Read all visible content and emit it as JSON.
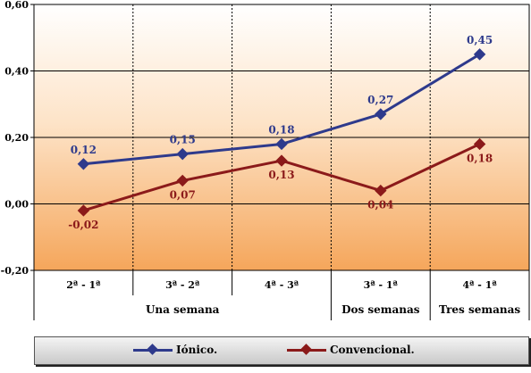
{
  "chart_data": {
    "type": "line",
    "categories": [
      "2ª - 1ª",
      "3ª - 2ª",
      "4ª - 3ª",
      "3ª - 1ª",
      "4ª - 1ª"
    ],
    "groups": [
      {
        "label": "Una semana",
        "span": 3
      },
      {
        "label": "Dos semanas",
        "span": 1
      },
      {
        "label": "Tres semanas",
        "span": 1
      }
    ],
    "series": [
      {
        "name": "Iónico.",
        "values": [
          0.12,
          0.15,
          0.18,
          0.27,
          0.45
        ],
        "labels": [
          "0,12",
          "0,15",
          "0,18",
          "0,27",
          "0,45"
        ],
        "color": "#2e3a8c"
      },
      {
        "name": "Convencional.",
        "values": [
          -0.02,
          0.07,
          0.13,
          0.04,
          0.18
        ],
        "labels": [
          "-0,02",
          "0,07",
          "0,13",
          "0,04",
          "0,18"
        ],
        "color": "#8b1a1a"
      }
    ],
    "ylim": [
      -0.2,
      0.6
    ],
    "yticks": [
      -0.2,
      0.0,
      0.2,
      0.4,
      0.6
    ],
    "ytick_labels": [
      "-0,20",
      "0,00",
      "0,20",
      "0,40",
      "0,60"
    ],
    "grid": true,
    "legend_position": "bottom",
    "background_gradient": [
      "#ffffff",
      "#f5a65b"
    ]
  }
}
